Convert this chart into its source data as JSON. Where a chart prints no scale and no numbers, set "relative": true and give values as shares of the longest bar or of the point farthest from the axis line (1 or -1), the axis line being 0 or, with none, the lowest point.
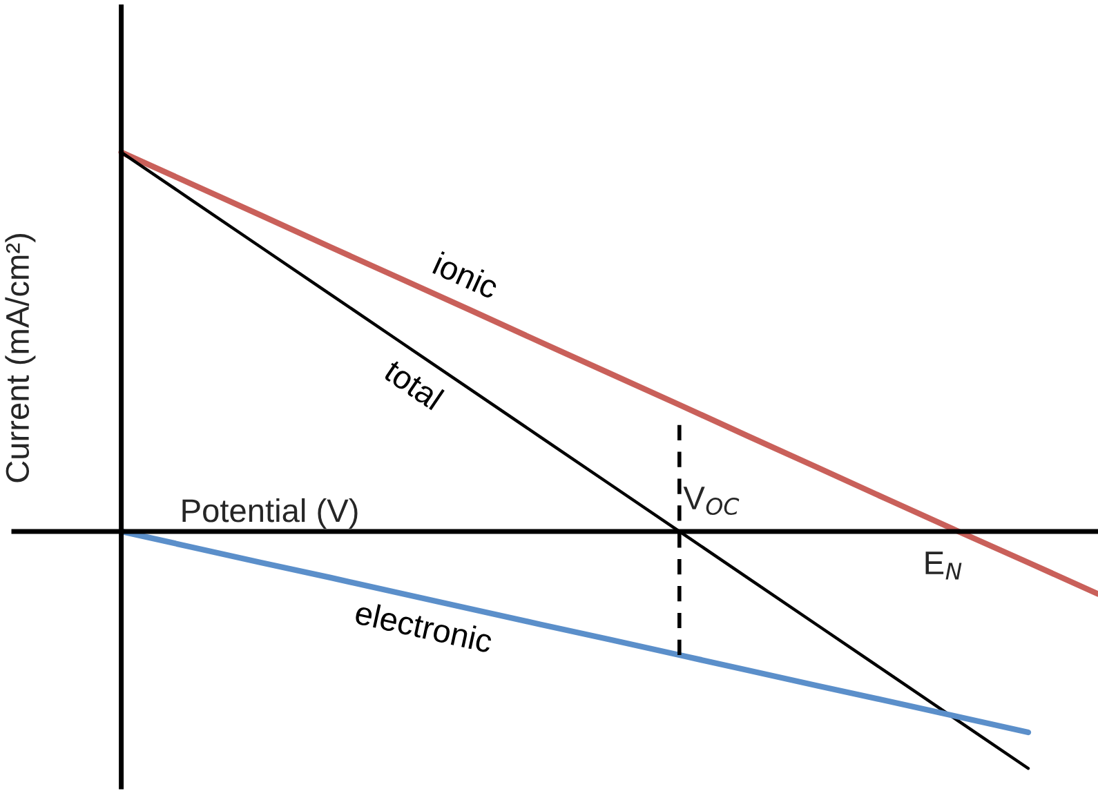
{
  "chart_data": {
    "type": "line",
    "relative": true,
    "xlabel": "Potential (V)",
    "ylabel": "Current (mA/cm²)",
    "categories": [
      null,
      null,
      null,
      null,
      null,
      null,
      null,
      null,
      null,
      null,
      null,
      null,
      null,
      null,
      null
    ],
    "series": [
      {
        "name": "ionic",
        "color": "#c9605a",
        "values": [
          1,
          0.917,
          0.834,
          0.75,
          0.667,
          0.584,
          0.5,
          0.417,
          0.334,
          0.25,
          0.167,
          0.083,
          0,
          -0.082,
          -0.165
        ]
      },
      {
        "name": "total",
        "color": "#000000",
        "values": [
          1,
          0.875,
          0.75,
          0.625,
          0.5,
          0.375,
          0.25,
          0.125,
          0,
          -0.125,
          -0.25,
          -0.375,
          -0.5,
          -0.625,
          null
        ]
      },
      {
        "name": "electronic",
        "color": "#5b8fca",
        "values": [
          0,
          -0.041,
          -0.082,
          -0.122,
          -0.163,
          -0.204,
          -0.245,
          -0.285,
          -0.326,
          -0.367,
          -0.408,
          -0.448,
          -0.489,
          -0.53,
          null
        ]
      }
    ],
    "annotations": [
      "V$_{OC}$",
      "E$_{N}$"
    ]
  }
}
